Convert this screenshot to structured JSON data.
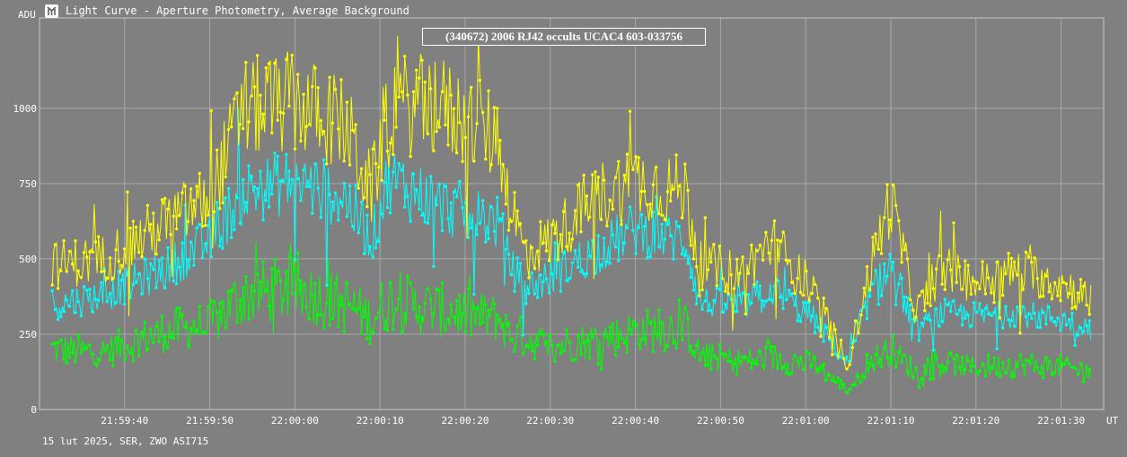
{
  "window": {
    "title": "Light Curve - Aperture Photometry, Average Background"
  },
  "footer": {
    "info": "15 lut 2025, SER, ZWO ASI715"
  },
  "chart_data": {
    "type": "line",
    "title": "(340672) 2006 RJ42 occults UCAC4 603-033756",
    "ylabel": "ADU",
    "xlabel": "UT",
    "ylim": [
      0,
      1300
    ],
    "xlim": [
      -10.0,
      15.0
    ],
    "grid": true,
    "yticks": [
      0,
      250,
      500,
      750,
      1000
    ],
    "ytick_labels": [
      "0",
      "250",
      "500",
      "750",
      "1000"
    ],
    "xticks": [
      -8,
      -6,
      -4,
      -2,
      0,
      2,
      4,
      6,
      8,
      10,
      12,
      14
    ],
    "xtick_labels": [
      "21:59:40",
      "21:59:50",
      "22:00:00",
      "22:00:10",
      "22:00:20",
      "22:00:30",
      "22:00:40",
      "22:00:50",
      "22:01:00",
      "22:01:10",
      "22:01:20",
      "22:01:30"
    ],
    "x": [
      -9.6,
      -8.5,
      -7.0,
      -6.0,
      -5.2,
      -4.0,
      -2.8,
      -2.2,
      -1.8,
      -0.6,
      0.8,
      1.0,
      1.4,
      2.0,
      3.0,
      4.0,
      5.2,
      5.5,
      6.5,
      7.2,
      8.2,
      9.0,
      9.5,
      10.0,
      10.6,
      11.2,
      12.0,
      13.0,
      14.0,
      15.0
    ],
    "series": [
      {
        "color": "#ffff00",
        "values": [
          480,
          500,
          620,
          700,
          1000,
          1020,
          940,
          720,
          1010,
          1010,
          900,
          720,
          520,
          560,
          700,
          760,
          720,
          480,
          450,
          560,
          380,
          150,
          460,
          700,
          320,
          470,
          420,
          460,
          420,
          340
        ]
      },
      {
        "color": "#00ffff",
        "values": [
          350,
          380,
          470,
          560,
          720,
          760,
          700,
          560,
          770,
          680,
          620,
          500,
          400,
          440,
          520,
          600,
          560,
          360,
          340,
          400,
          300,
          150,
          380,
          480,
          260,
          320,
          310,
          320,
          300,
          260
        ]
      },
      {
        "color": "#00ff00",
        "values": [
          200,
          190,
          260,
          280,
          380,
          400,
          350,
          300,
          360,
          330,
          300,
          250,
          240,
          210,
          230,
          260,
          270,
          180,
          160,
          170,
          150,
          60,
          160,
          200,
          120,
          150,
          140,
          150,
          140,
          120
        ]
      }
    ]
  }
}
